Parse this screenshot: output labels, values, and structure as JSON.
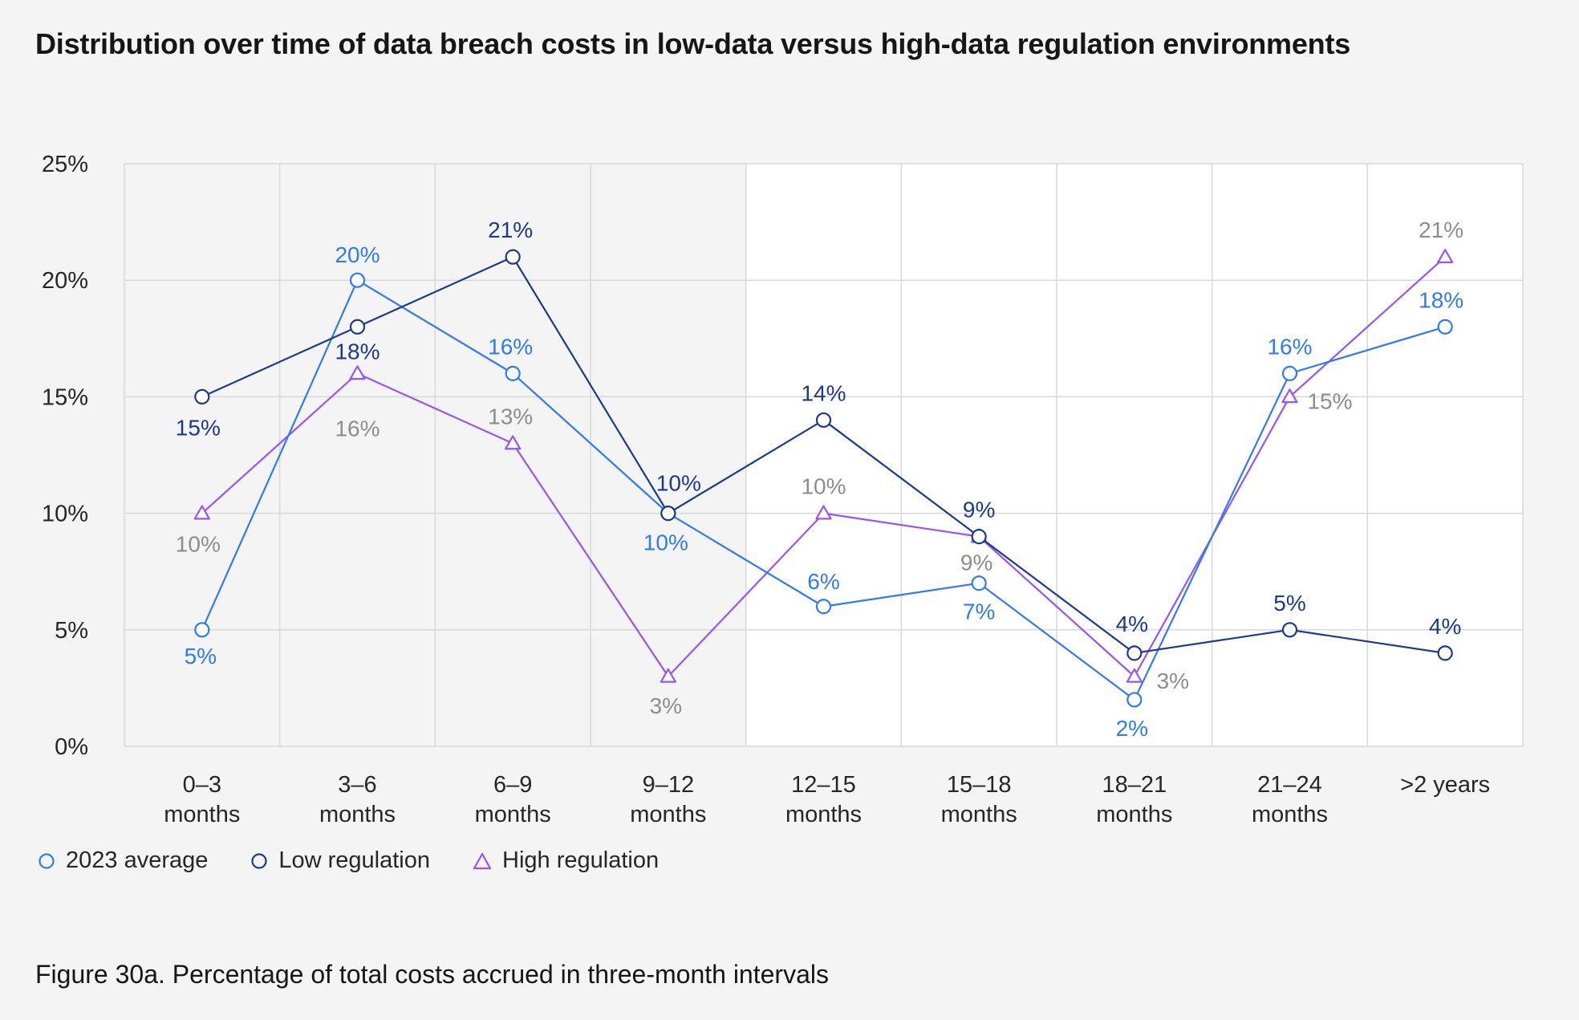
{
  "title": "Distribution over time of data breach costs in low-data versus high-data regulation environments",
  "caption": "Figure 30a. Percentage of total costs accrued in three-month intervals",
  "colors": {
    "avg": "#2f7bef",
    "low": "#1c3a8c",
    "high": "#9a54f5",
    "high_label": "#8d8d8d",
    "grid": "#d8d8d8",
    "plot_bg_left": "#f4f4f4",
    "plot_bg_right": "#ffffff"
  },
  "chart_data": {
    "type": "line",
    "title": "Distribution over time of data breach costs in low-data versus high-data regulation environments",
    "xlabel": "",
    "ylabel": "",
    "ylim": [
      0,
      25
    ],
    "yticks": [
      "0%",
      "5%",
      "10%",
      "15%",
      "20%",
      "25%"
    ],
    "categories": [
      [
        "0–3",
        "months"
      ],
      [
        "3–6",
        "months"
      ],
      [
        "6–9",
        "months"
      ],
      [
        "9–12",
        "months"
      ],
      [
        "12–15",
        "months"
      ],
      [
        "15–18",
        "months"
      ],
      [
        "18–21",
        "months"
      ],
      [
        "21–24",
        "months"
      ],
      [
        ">2 years"
      ]
    ],
    "series": [
      {
        "key": "avg",
        "name": "2023 average",
        "marker": "circle",
        "values": [
          5,
          20,
          16,
          10,
          6,
          7,
          2,
          16,
          18
        ],
        "labels": [
          "5%",
          "20%",
          "16%",
          "10%",
          "6%",
          "7%",
          "2%",
          "16%",
          "18%"
        ]
      },
      {
        "key": "low",
        "name": "Low regulation",
        "marker": "circle",
        "values": [
          15,
          18,
          21,
          10,
          14,
          9,
          4,
          5,
          4
        ],
        "labels": [
          "15%",
          "18%",
          "21%",
          "10%",
          "14%",
          "9%",
          "4%",
          "5%",
          "4%"
        ]
      },
      {
        "key": "high",
        "name": "High regulation",
        "marker": "triangle",
        "values": [
          10,
          16,
          13,
          3,
          10,
          9,
          3,
          15,
          21
        ],
        "labels": [
          "10%",
          "16%",
          "13%",
          "3%",
          "10%",
          "9%",
          "3%",
          "15%",
          "21%"
        ]
      }
    ],
    "legend": [
      {
        "key": "avg",
        "label": "2023 average",
        "marker": "circle"
      },
      {
        "key": "low",
        "label": "Low regulation",
        "marker": "circle"
      },
      {
        "key": "high",
        "label": "High regulation",
        "marker": "triangle"
      }
    ]
  }
}
